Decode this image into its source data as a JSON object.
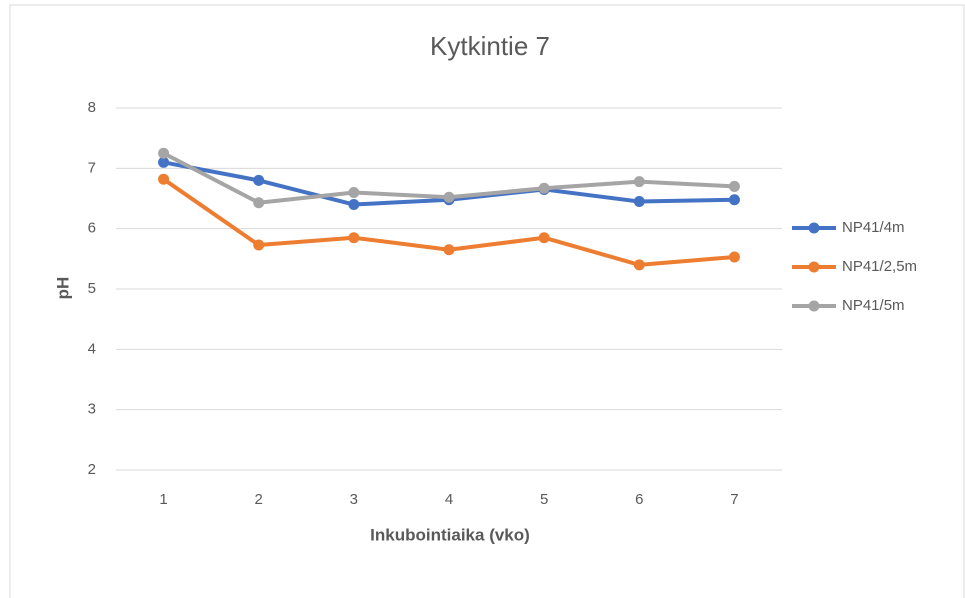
{
  "chart_data": {
    "type": "line",
    "title": "Kytkintie 7",
    "x_label": "Inkubointiaika (vko)",
    "y_label": "pH",
    "categories": [
      "1",
      "2",
      "3",
      "4",
      "5",
      "6",
      "7"
    ],
    "series": [
      {
        "name": "NP41/4m",
        "color": "#4472c4",
        "values": [
          7.1,
          6.8,
          6.4,
          6.48,
          6.65,
          6.45,
          6.48
        ]
      },
      {
        "name": "NP41/2,5m",
        "color": "#ed7d31",
        "values": [
          6.82,
          5.73,
          5.85,
          5.65,
          5.85,
          5.4,
          5.53
        ]
      },
      {
        "name": "NP41/5m",
        "color": "#a5a5a5",
        "values": [
          7.25,
          6.43,
          6.6,
          6.52,
          6.67,
          6.78,
          6.7
        ]
      }
    ],
    "ylim": [
      2,
      8
    ],
    "yticks": [
      2,
      3,
      4,
      5,
      6,
      7,
      8
    ],
    "grid": true,
    "legend": "right"
  }
}
